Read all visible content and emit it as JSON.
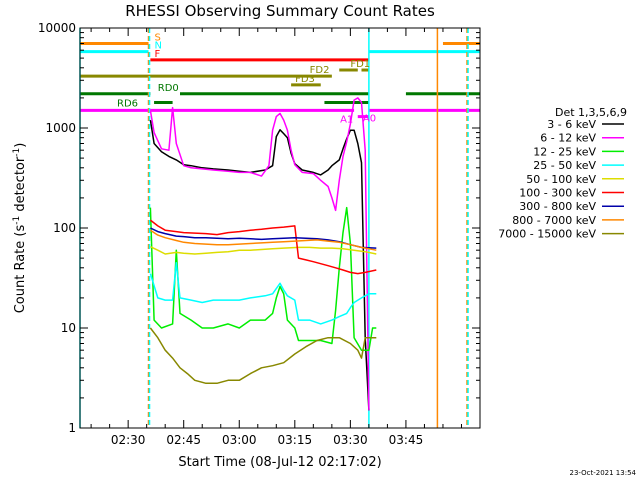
{
  "chart_data": {
    "type": "line",
    "title": "RHESSI Observing Summary Count Rates",
    "xlabel": "Start Time (08-Jul-12 02:17:02)",
    "ylabel": "Count Rate (s⁻¹ detector⁻¹)",
    "ylabel_main": "Count Rate (s",
    "ylabel_sup1": "-1",
    "ylabel_mid": " detector",
    "ylabel_sup2": "-1",
    "ylabel_end": ")",
    "timestamp": "23-Oct-2021 13:54",
    "yscale": "log",
    "ylim": [
      1,
      10000
    ],
    "xlim_minutes": [
      0,
      108
    ],
    "x_start": "02:17:02",
    "x_ticks": [
      {
        "minute": 13,
        "label": "02:30"
      },
      {
        "minute": 28,
        "label": "02:45"
      },
      {
        "minute": 43,
        "label": "03:00"
      },
      {
        "minute": 58,
        "label": "03:15"
      },
      {
        "minute": 73,
        "label": "03:30"
      },
      {
        "minute": 88,
        "label": "03:45"
      }
    ],
    "y_ticks": [
      {
        "value": 1,
        "label": "1"
      },
      {
        "value": 10,
        "label": "10"
      },
      {
        "value": 100,
        "label": "100"
      },
      {
        "value": 1000,
        "label": "1000"
      },
      {
        "value": 10000,
        "label": "10000"
      }
    ],
    "legend_title": "Det 1,3,5,6,9",
    "series": [
      {
        "name": "3 - 6 keV",
        "color": "#000000",
        "points": [
          [
            19,
            1200
          ],
          [
            20,
            700
          ],
          [
            22,
            580
          ],
          [
            24,
            520
          ],
          [
            26,
            480
          ],
          [
            28,
            430
          ],
          [
            30,
            420
          ],
          [
            33,
            400
          ],
          [
            36,
            390
          ],
          [
            40,
            380
          ],
          [
            43,
            370
          ],
          [
            46,
            360
          ],
          [
            50,
            380
          ],
          [
            52,
            420
          ],
          [
            53,
            820
          ],
          [
            54,
            960
          ],
          [
            55,
            880
          ],
          [
            56,
            800
          ],
          [
            57,
            560
          ],
          [
            58,
            440
          ],
          [
            60,
            380
          ],
          [
            63,
            360
          ],
          [
            65,
            340
          ],
          [
            67,
            380
          ],
          [
            68,
            420
          ],
          [
            70,
            480
          ],
          [
            71,
            620
          ],
          [
            72,
            780
          ],
          [
            73,
            950
          ],
          [
            74,
            950
          ],
          [
            75,
            700
          ],
          [
            76,
            450
          ],
          [
            77,
            8
          ],
          [
            78,
            1.5
          ]
        ]
      },
      {
        "name": "6 - 12 keV",
        "color": "#ff00ff",
        "points": [
          [
            19,
            1500
          ],
          [
            20,
            900
          ],
          [
            22,
            620
          ],
          [
            24,
            600
          ],
          [
            25,
            1600
          ],
          [
            26,
            700
          ],
          [
            28,
            420
          ],
          [
            30,
            400
          ],
          [
            33,
            390
          ],
          [
            36,
            380
          ],
          [
            40,
            370
          ],
          [
            43,
            360
          ],
          [
            46,
            360
          ],
          [
            49,
            330
          ],
          [
            51,
            420
          ],
          [
            52,
            950
          ],
          [
            53,
            1300
          ],
          [
            54,
            1400
          ],
          [
            55,
            1200
          ],
          [
            56,
            950
          ],
          [
            57,
            600
          ],
          [
            58,
            430
          ],
          [
            60,
            360
          ],
          [
            63,
            350
          ],
          [
            65,
            300
          ],
          [
            67,
            260
          ],
          [
            68,
            200
          ],
          [
            69,
            150
          ],
          [
            70,
            300
          ],
          [
            71,
            520
          ],
          [
            72,
            730
          ],
          [
            73,
            1100
          ],
          [
            74,
            1900
          ],
          [
            75,
            2000
          ],
          [
            76,
            1800
          ],
          [
            77,
            600
          ],
          [
            78,
            1.5
          ]
        ]
      },
      {
        "name": "12 - 25 keV",
        "color": "#00ee00",
        "points": [
          [
            19,
            160
          ],
          [
            20,
            12
          ],
          [
            22,
            10
          ],
          [
            25,
            11
          ],
          [
            26,
            60
          ],
          [
            27,
            14
          ],
          [
            30,
            12
          ],
          [
            33,
            10
          ],
          [
            36,
            10
          ],
          [
            40,
            11
          ],
          [
            43,
            10
          ],
          [
            46,
            12
          ],
          [
            50,
            12
          ],
          [
            52,
            14
          ],
          [
            53,
            20
          ],
          [
            54,
            26
          ],
          [
            55,
            22
          ],
          [
            56,
            12
          ],
          [
            58,
            10
          ],
          [
            59,
            7.5
          ],
          [
            62,
            7.5
          ],
          [
            65,
            7.5
          ],
          [
            68,
            7
          ],
          [
            69,
            15
          ],
          [
            70,
            40
          ],
          [
            71,
            90
          ],
          [
            72,
            160
          ],
          [
            73,
            70
          ],
          [
            74,
            8
          ],
          [
            76,
            6
          ],
          [
            78,
            6
          ],
          [
            79,
            10
          ],
          [
            80,
            10
          ]
        ]
      },
      {
        "name": "25 - 50 keV",
        "color": "#00ffff",
        "points": [
          [
            19,
            35
          ],
          [
            21,
            20
          ],
          [
            23,
            19
          ],
          [
            25,
            19
          ],
          [
            26,
            45
          ],
          [
            27,
            20
          ],
          [
            30,
            19
          ],
          [
            33,
            18
          ],
          [
            36,
            19
          ],
          [
            40,
            19
          ],
          [
            43,
            19
          ],
          [
            46,
            20
          ],
          [
            50,
            21
          ],
          [
            52,
            22
          ],
          [
            54,
            28
          ],
          [
            55,
            24
          ],
          [
            56,
            21
          ],
          [
            58,
            19
          ],
          [
            59,
            12
          ],
          [
            62,
            12
          ],
          [
            65,
            11
          ],
          [
            68,
            12
          ],
          [
            70,
            13
          ],
          [
            72,
            14
          ],
          [
            73,
            16
          ],
          [
            74,
            18
          ],
          [
            76,
            20
          ],
          [
            78,
            22
          ],
          [
            80,
            22
          ]
        ]
      },
      {
        "name": "50 - 100 keV",
        "color": "#dddd00",
        "points": [
          [
            19,
            65
          ],
          [
            21,
            60
          ],
          [
            23,
            55
          ],
          [
            26,
            57
          ],
          [
            28,
            56
          ],
          [
            31,
            55
          ],
          [
            34,
            56
          ],
          [
            37,
            57
          ],
          [
            40,
            58
          ],
          [
            43,
            60
          ],
          [
            46,
            60
          ],
          [
            49,
            61
          ],
          [
            52,
            62
          ],
          [
            55,
            63
          ],
          [
            59,
            64
          ],
          [
            62,
            64
          ],
          [
            65,
            63
          ],
          [
            68,
            63
          ],
          [
            71,
            62
          ],
          [
            74,
            60
          ],
          [
            77,
            58
          ],
          [
            80,
            55
          ]
        ]
      },
      {
        "name": "100 - 300 keV",
        "color": "#ff0000",
        "points": [
          [
            19,
            120
          ],
          [
            21,
            105
          ],
          [
            23,
            95
          ],
          [
            26,
            92
          ],
          [
            28,
            90
          ],
          [
            31,
            89
          ],
          [
            34,
            88
          ],
          [
            37,
            86
          ],
          [
            40,
            90
          ],
          [
            43,
            92
          ],
          [
            46,
            95
          ],
          [
            49,
            97
          ],
          [
            52,
            100
          ],
          [
            55,
            102
          ],
          [
            58,
            105
          ],
          [
            59,
            50
          ],
          [
            61,
            48
          ],
          [
            63,
            46
          ],
          [
            65,
            44
          ],
          [
            67,
            42
          ],
          [
            69,
            40
          ],
          [
            71,
            38
          ],
          [
            73,
            36
          ],
          [
            75,
            35
          ],
          [
            77,
            36
          ],
          [
            80,
            38
          ]
        ]
      },
      {
        "name": "300 - 800 keV",
        "color": "#0000aa",
        "points": [
          [
            19,
            100
          ],
          [
            21,
            92
          ],
          [
            23,
            88
          ],
          [
            26,
            83
          ],
          [
            28,
            82
          ],
          [
            31,
            80
          ],
          [
            34,
            80
          ],
          [
            37,
            79
          ],
          [
            40,
            78
          ],
          [
            43,
            79
          ],
          [
            46,
            78
          ],
          [
            49,
            77
          ],
          [
            52,
            78
          ],
          [
            55,
            79
          ],
          [
            58,
            80
          ],
          [
            61,
            79
          ],
          [
            64,
            78
          ],
          [
            67,
            76
          ],
          [
            70,
            73
          ],
          [
            73,
            68
          ],
          [
            76,
            64
          ],
          [
            80,
            63
          ]
        ]
      },
      {
        "name": "800 - 7000 keV",
        "color": "#ff8800",
        "points": [
          [
            19,
            95
          ],
          [
            21,
            85
          ],
          [
            23,
            80
          ],
          [
            26,
            75
          ],
          [
            28,
            72
          ],
          [
            31,
            70
          ],
          [
            34,
            69
          ],
          [
            37,
            68
          ],
          [
            40,
            68
          ],
          [
            43,
            69
          ],
          [
            46,
            70
          ],
          [
            49,
            71
          ],
          [
            52,
            72
          ],
          [
            55,
            73
          ],
          [
            58,
            74
          ],
          [
            61,
            75
          ],
          [
            64,
            76
          ],
          [
            67,
            74
          ],
          [
            70,
            72
          ],
          [
            73,
            68
          ],
          [
            76,
            64
          ],
          [
            80,
            60
          ]
        ]
      },
      {
        "name": "7000 - 15000 keV",
        "color": "#888800",
        "points": [
          [
            19,
            10
          ],
          [
            21,
            8
          ],
          [
            23,
            6
          ],
          [
            25,
            5
          ],
          [
            27,
            4
          ],
          [
            29,
            3.5
          ],
          [
            31,
            3
          ],
          [
            34,
            2.8
          ],
          [
            37,
            2.8
          ],
          [
            40,
            3
          ],
          [
            43,
            3
          ],
          [
            46,
            3.5
          ],
          [
            49,
            4
          ],
          [
            52,
            4.2
          ],
          [
            55,
            4.5
          ],
          [
            58,
            5.5
          ],
          [
            61,
            6.5
          ],
          [
            64,
            7.5
          ],
          [
            67,
            8
          ],
          [
            70,
            8
          ],
          [
            73,
            7
          ],
          [
            75,
            6
          ],
          [
            76,
            5
          ],
          [
            77,
            8
          ],
          [
            78,
            8
          ],
          [
            80,
            8
          ]
        ]
      }
    ],
    "flag_lines": [
      {
        "label": "S",
        "color": "#ff8800",
        "value": 7000,
        "segments": [
          [
            0,
            18.5
          ],
          [
            98,
            108
          ]
        ]
      },
      {
        "label": "N",
        "color": "#00ffff",
        "value": 5800,
        "segments": [
          [
            0,
            18.5
          ],
          [
            78,
            108
          ]
        ]
      },
      {
        "label": "F",
        "color": "#ff0000",
        "value": 4800,
        "segments": [
          [
            19,
            78
          ]
        ]
      },
      {
        "label": "FD1",
        "color": "#888800",
        "value": 3800,
        "segments": [
          [
            70,
            75
          ],
          [
            76,
            78
          ]
        ]
      },
      {
        "label": "FD2",
        "color": "#888800",
        "value": 3300,
        "segments": [
          [
            0,
            68
          ]
        ]
      },
      {
        "label": "FD3",
        "color": "#888800",
        "value": 2700,
        "segments": [
          [
            57,
            65
          ]
        ]
      },
      {
        "label": "RD0",
        "color": "#007700",
        "value": 2200,
        "segments": [
          [
            0,
            19
          ],
          [
            27,
            78
          ],
          [
            88,
            108
          ]
        ]
      },
      {
        "label": "RD6",
        "color": "#007700",
        "value": 1800,
        "segments": [
          [
            20,
            25
          ],
          [
            66,
            78
          ]
        ]
      },
      {
        "label": "A1",
        "color": "#ff00ff",
        "value": 1500,
        "segments": [
          [
            0,
            74
          ],
          [
            78,
            108
          ]
        ]
      },
      {
        "label": "A0",
        "color": "#ff00ff",
        "value": 1300,
        "segments": [
          [
            75,
            78
          ]
        ]
      }
    ],
    "vertical_lines": [
      {
        "minute": 0,
        "color": "#00ffff"
      },
      {
        "minute": 18.5,
        "color": "#ff8800"
      },
      {
        "minute": 18.5,
        "color": "#00ffff"
      },
      {
        "minute": 78,
        "color": "#00ffff"
      },
      {
        "minute": 96.5,
        "color": "#ff8800"
      },
      {
        "minute": 104.5,
        "color": "#ff8800"
      },
      {
        "minute": 104.5,
        "color": "#00ffff"
      }
    ]
  }
}
